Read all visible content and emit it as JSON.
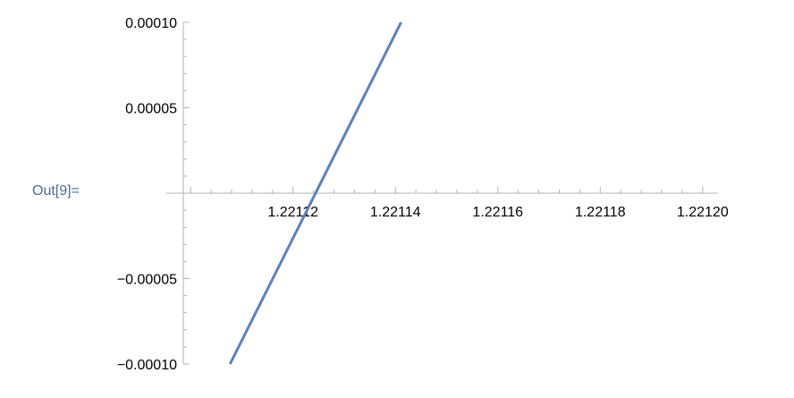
{
  "cell": {
    "output_label": "Out[9]="
  },
  "colors": {
    "series": "#5e81b5",
    "axis": "#b3b3b3"
  },
  "chart_data": {
    "type": "line",
    "title": "",
    "xlabel": "",
    "ylabel": "",
    "xlim": [
      1.221097,
      1.221203
    ],
    "ylim": [
      -0.0001,
      0.0001
    ],
    "grid": false,
    "series": [
      {
        "x": [
          1.2211077,
          1.2211411
        ],
        "y": [
          -0.0001,
          0.0001
        ]
      }
    ],
    "x_ticks": [
      {
        "value": 1.22112,
        "label": "1.22112"
      },
      {
        "value": 1.22114,
        "label": "1.22114"
      },
      {
        "value": 1.22116,
        "label": "1.22116"
      },
      {
        "value": 1.22118,
        "label": "1.22118"
      },
      {
        "value": 1.2212,
        "label": "1.22120"
      }
    ],
    "y_ticks": [
      {
        "value": 0.0001,
        "label": "0.00010"
      },
      {
        "value": 5e-05,
        "label": "0.00005"
      },
      {
        "value": -5e-05,
        "label": "−0.00005"
      },
      {
        "value": -0.0001,
        "label": "−0.00010"
      }
    ]
  }
}
